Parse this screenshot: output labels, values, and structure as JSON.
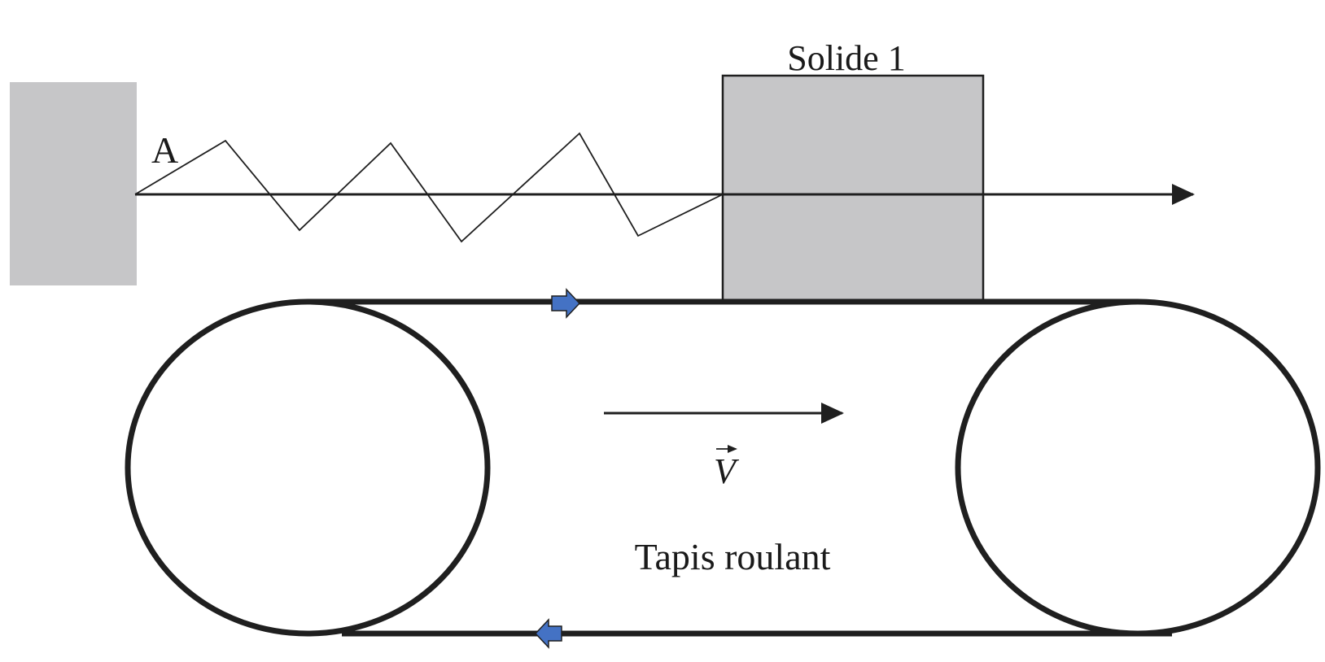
{
  "diagram": {
    "solid_label": "Solide 1",
    "anchor_label": "A",
    "velocity_symbol": "V",
    "belt_label": "Tapis roulant",
    "colors": {
      "wall_fill": "#c6c6c8",
      "solid_fill": "#c6c6c8",
      "stroke": "#1f1f1f",
      "belt_arrow_fill": "#4472c4"
    }
  }
}
